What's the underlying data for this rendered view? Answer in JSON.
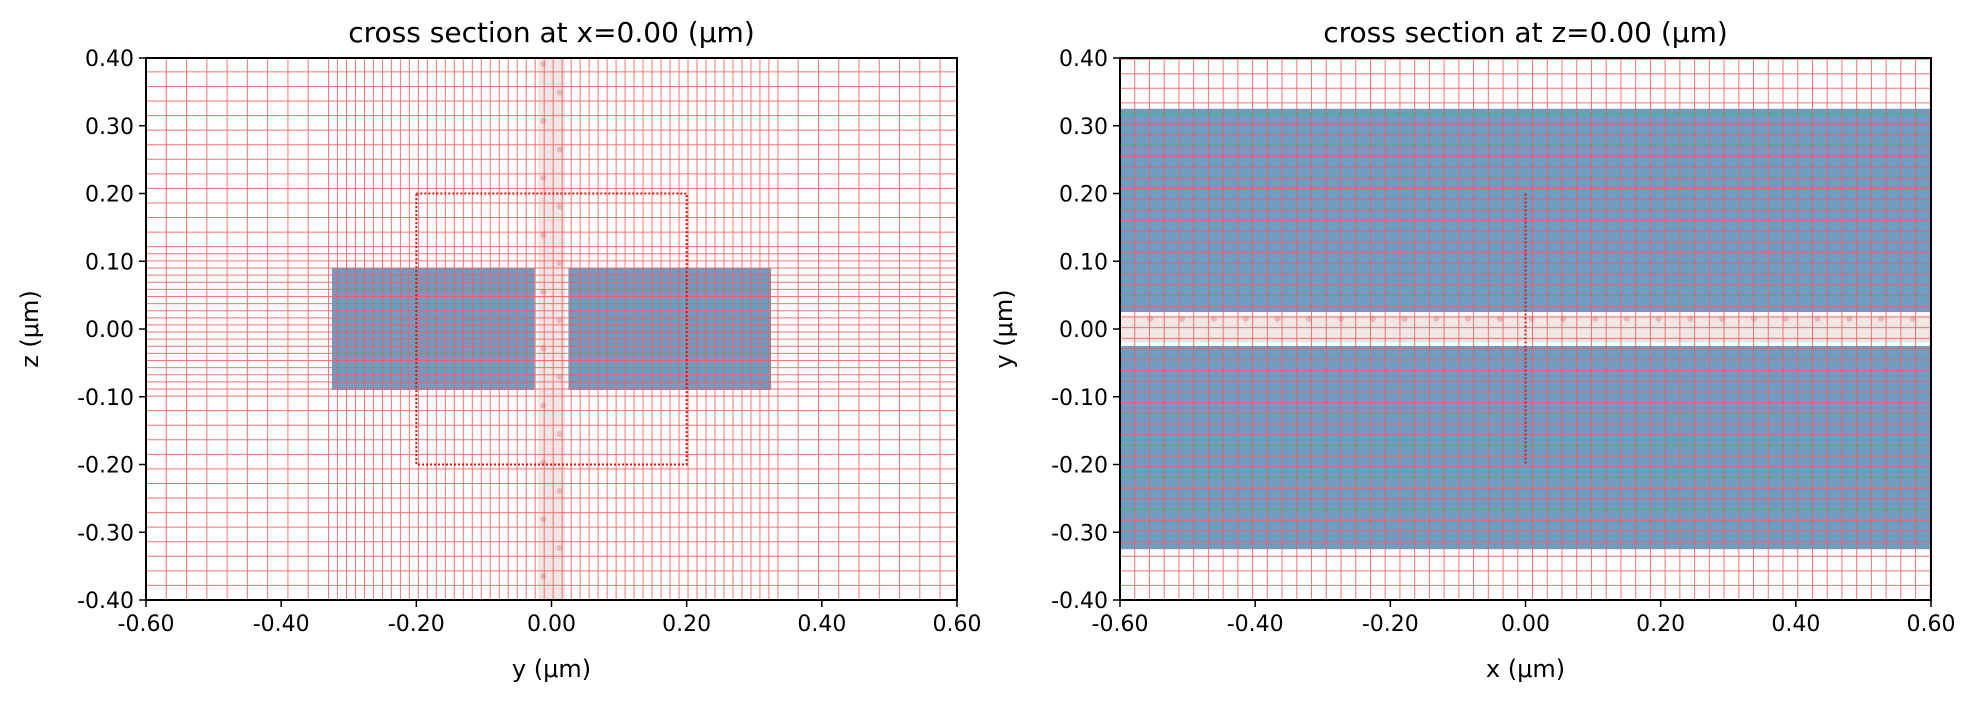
{
  "chart_data": [
    {
      "type": "cross_section",
      "title": "cross section at x=0.00 (μm)",
      "xlabel": "y (μm)",
      "ylabel": "z (μm)",
      "xlim": [
        -0.6,
        0.6
      ],
      "ylim": [
        -0.4,
        0.4
      ],
      "xticks": [
        "-0.60",
        "-0.40",
        "-0.20",
        "0.00",
        "0.20",
        "0.40",
        "0.60"
      ],
      "yticks": [
        "-0.40",
        "-0.30",
        "-0.20",
        "-0.10",
        "0.00",
        "0.10",
        "0.20",
        "0.30",
        "0.40"
      ],
      "grid": "nonuniform mesh",
      "structures": [
        {
          "name": "left waveguide",
          "x": [
            -0.325,
            -0.025
          ],
          "y": [
            -0.09,
            0.09
          ]
        },
        {
          "name": "right waveguide",
          "x": [
            0.025,
            0.325
          ],
          "y": [
            -0.09,
            0.09
          ]
        }
      ],
      "monitor_box": {
        "x": [
          -0.2,
          0.2
        ],
        "y": [
          -0.2,
          0.2
        ]
      },
      "source_plane": {
        "x": [
          -0.02,
          0.02
        ]
      }
    },
    {
      "type": "cross_section",
      "title": "cross section at z=0.00 (μm)",
      "xlabel": "x (μm)",
      "ylabel": "y (μm)",
      "xlim": [
        -0.6,
        0.6
      ],
      "ylim": [
        -0.4,
        0.4
      ],
      "xticks": [
        "-0.60",
        "-0.40",
        "-0.20",
        "0.00",
        "0.20",
        "0.40",
        "0.60"
      ],
      "yticks": [
        "-0.40",
        "-0.30",
        "-0.20",
        "-0.10",
        "0.00",
        "0.10",
        "0.20",
        "0.30",
        "0.40"
      ],
      "grid": "nonuniform mesh",
      "structures": [
        {
          "name": "upper waveguide",
          "x": [
            -0.6,
            0.6
          ],
          "y": [
            0.025,
            0.325
          ]
        },
        {
          "name": "lower waveguide",
          "x": [
            -0.6,
            0.6
          ],
          "y": [
            -0.325,
            -0.025
          ]
        }
      ],
      "monitor_line": {
        "x": 0.0,
        "y": [
          -0.2,
          0.2
        ]
      },
      "source_plane": {
        "y": [
          -0.02,
          0.02
        ]
      }
    }
  ],
  "colors": {
    "structure": "#6f9cc0",
    "grid": "#ff5a5a",
    "monitor": "#e01010",
    "source_fill": "#f0e6e6",
    "source_dots": "#e7b8b8",
    "axes": "#000000"
  }
}
